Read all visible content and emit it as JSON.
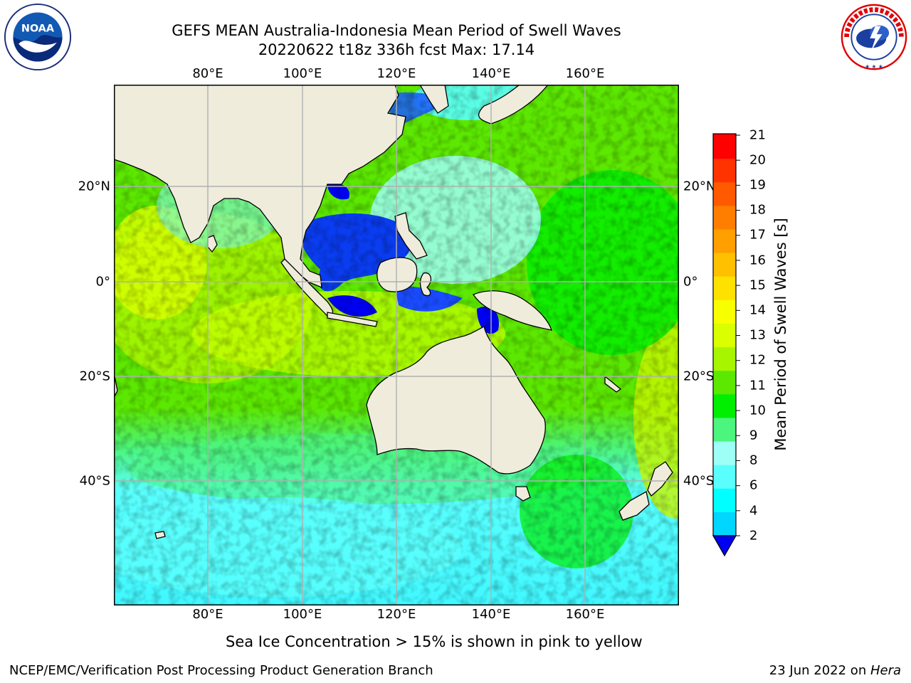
{
  "title": {
    "line1": "GEFS MEAN Australia-Indonesia Mean Period of Swell Waves",
    "line2": "20220622 t18z 336h fcst   Max: 17.14"
  },
  "logos": {
    "noaa": {
      "name": "noaa-logo",
      "text": "NOAA",
      "ring_text": "NATIONAL OCEANIC AND ATMOSPHERIC ADMINISTRATION · U.S. DEPARTMENT OF COMMERCE"
    },
    "nws": {
      "name": "nws-logo",
      "ring_text": "NATIONAL WEATHER SERVICE"
    }
  },
  "map": {
    "lon_labels": [
      "80°E",
      "100°E",
      "120°E",
      "140°E",
      "160°E"
    ],
    "lat_labels": [
      "20°N",
      "0°",
      "20°S",
      "40°S"
    ],
    "colors": {
      "land": "#efecdc",
      "grid": "#b0b0b0"
    }
  },
  "colorbar": {
    "label": "Mean Period of Swell Waves [s]",
    "ticks": [
      "21",
      "20",
      "19",
      "18",
      "17",
      "16",
      "15",
      "14",
      "13",
      "12",
      "11",
      "10",
      "9",
      "8",
      "6",
      "4",
      "2"
    ],
    "colors": [
      "#ff0000",
      "#ff3300",
      "#ff5a00",
      "#ff7e00",
      "#ff9f00",
      "#ffc000",
      "#ffe100",
      "#f8ff00",
      "#d9ff00",
      "#a8f500",
      "#5ce800",
      "#00ee00",
      "#4cf57e",
      "#9dfff5",
      "#5afffd",
      "#00ffff",
      "#00d6ff",
      "#007dff",
      "#0000f5"
    ]
  },
  "footer": {
    "note": "Sea Ice Concentration > 15% is shown in pink to yellow",
    "left": "NCEP/EMC/Verification Post Processing Product Generation Branch",
    "right_prefix": "23 Jun 2022 on ",
    "right_machine": "Hera"
  }
}
